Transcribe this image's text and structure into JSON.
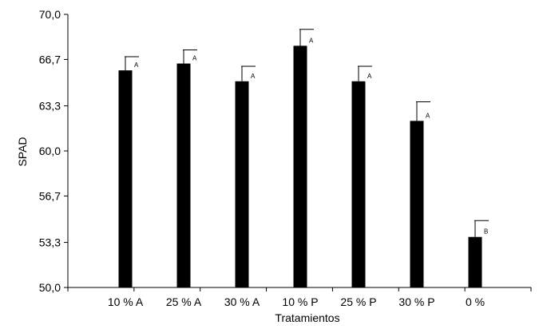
{
  "chart_data": {
    "type": "bar",
    "categories": [
      "10 % A",
      "25 % A",
      "30 % A",
      "10 % P",
      "25 % P",
      "30 % P",
      "0 %"
    ],
    "values": [
      65.9,
      66.4,
      65.1,
      67.7,
      65.1,
      62.2,
      53.7
    ],
    "error_upper": [
      66.9,
      67.4,
      66.2,
      68.9,
      66.2,
      63.6,
      54.9
    ],
    "significance": [
      "A",
      "A",
      "A",
      "A",
      "A",
      "A",
      "B"
    ],
    "xlabel": "Tratamientos",
    "ylabel": "SPAD",
    "ylim": [
      50,
      70
    ],
    "yticks": [
      50.0,
      53.3,
      56.7,
      60.0,
      63.3,
      66.7,
      70.0
    ],
    "ytick_labels": [
      "50,0",
      "53,3",
      "56,7",
      "60,0",
      "63,3",
      "66,7",
      "70,0"
    ],
    "grid": false,
    "bar_color": "#000000"
  }
}
